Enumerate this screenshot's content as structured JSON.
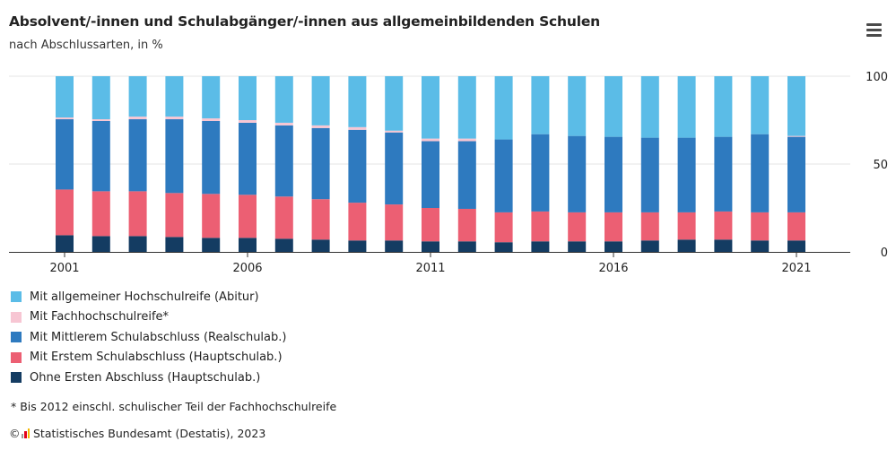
{
  "header": {
    "title": "Absolvent/-innen und Schulabgänger/-innen aus allgemeinbildenden Schulen",
    "subtitle": "nach Abschlussarten, in %"
  },
  "menu_icon": "hamburger-menu-icon",
  "footnote": "* Bis 2012 einschl. schulischer Teil der Fachhochschulreife",
  "source": {
    "copyright": "©",
    "logo_icon": "destatis-logo-icon",
    "text": "Statistisches Bundesamt (Destatis), 2023"
  },
  "legend": [
    {
      "label": "Mit allgemeiner Hochschulreife (Abitur)",
      "color": "#5bbce7"
    },
    {
      "label": "Mit Fachhochschulreife*",
      "color": "#f7c6d3"
    },
    {
      "label": "Mit Mittlerem Schulabschluss (Realschulab.)",
      "color": "#2e7abf"
    },
    {
      "label": "Mit Erstem Schulabschluss (Hauptschulab.)",
      "color": "#ec5f73"
    },
    {
      "label": "Ohne Ersten Abschluss (Hauptschulab.)",
      "color": "#143c62"
    }
  ],
  "chart_data": {
    "type": "bar",
    "stacked": true,
    "categories": [
      "2001",
      "2002",
      "2003",
      "2004",
      "2005",
      "2006",
      "2007",
      "2008",
      "2009",
      "2010",
      "2011",
      "2012",
      "2013",
      "2014",
      "2015",
      "2016",
      "2017",
      "2018",
      "2019",
      "2020",
      "2021"
    ],
    "x_tick_labels": [
      "2001",
      "2006",
      "2011",
      "2016",
      "2021"
    ],
    "y_tick_labels": [
      "100",
      "50",
      "0"
    ],
    "ylim": [
      0,
      100
    ],
    "y_axis_position": "right",
    "grid": true,
    "legend_position": "bottom-left",
    "series": [
      {
        "name": "Ohne Ersten Abschluss (Hauptschulab.)",
        "color": "#143c62",
        "values": [
          9.5,
          9,
          9,
          8.5,
          8,
          8,
          7.5,
          7,
          6.5,
          6.5,
          6,
          6,
          5.5,
          6,
          6,
          6,
          6.5,
          7,
          7,
          6.5,
          6.5
        ]
      },
      {
        "name": "Mit Erstem Schulabschluss (Hauptschulab.)",
        "color": "#ec5f73",
        "values": [
          26,
          25.5,
          25.5,
          25,
          25,
          24.5,
          24,
          23,
          21.5,
          20.5,
          19,
          18.5,
          17,
          17,
          16.5,
          16.5,
          16,
          15.5,
          16,
          16,
          16
        ]
      },
      {
        "name": "Mit Mittlerem Schulabschluss (Realschulab.)",
        "color": "#2e7abf",
        "values": [
          40,
          40,
          41,
          42,
          41.5,
          41,
          40.5,
          40.5,
          41.5,
          41,
          38,
          38.5,
          41.5,
          44,
          43.5,
          43,
          42.5,
          42.5,
          42.5,
          44.5,
          43
        ]
      },
      {
        "name": "Mit Fachhochschulreife*",
        "color": "#f7c6d3",
        "values": [
          1,
          1,
          1.5,
          1.5,
          1.5,
          1.5,
          1.5,
          1.5,
          1.5,
          1,
          1.5,
          1.5,
          0,
          0,
          0,
          0,
          0,
          0,
          0,
          0,
          0.5
        ]
      },
      {
        "name": "Mit allgemeiner Hochschulreife (Abitur)",
        "color": "#5bbce7",
        "values": [
          23.5,
          24.5,
          23,
          23,
          24,
          25,
          26.5,
          28,
          29,
          31,
          35.5,
          35.5,
          36,
          33,
          34,
          34.5,
          35,
          35,
          34.5,
          33,
          34
        ]
      }
    ]
  }
}
